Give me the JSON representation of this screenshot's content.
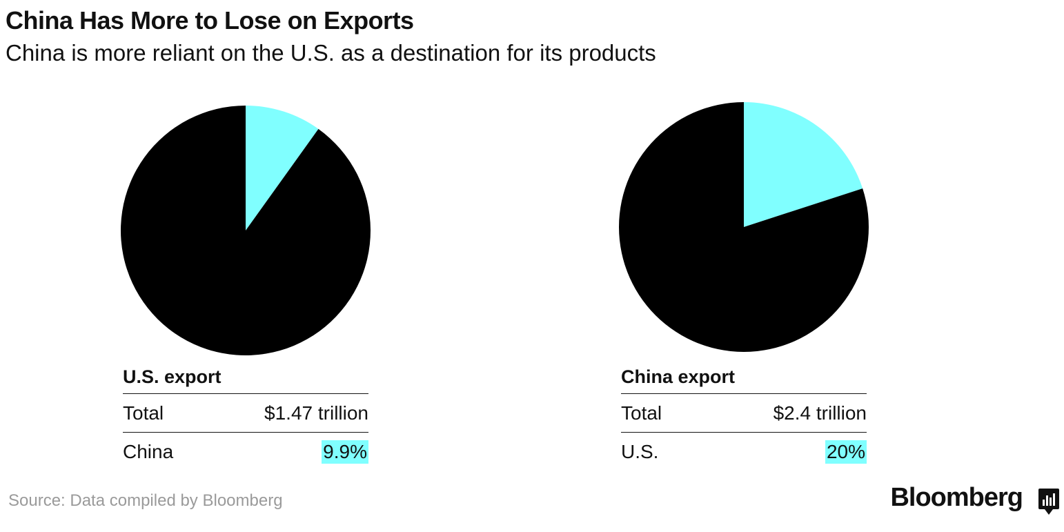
{
  "header": {
    "title": "China Has More to Lose on Exports",
    "subtitle": "China is more reliant on the U.S. as a destination for its products"
  },
  "colors": {
    "highlight": "#80ffff",
    "base": "#000000"
  },
  "chart_data": [
    {
      "type": "pie",
      "title": "U.S. export",
      "slices": [
        {
          "label": "China",
          "value": 9.9,
          "color": "#80ffff"
        },
        {
          "label": "",
          "value": 90.1,
          "color": "#000000"
        }
      ],
      "table": [
        {
          "label": "Total",
          "value": "$1.47 trillion"
        },
        {
          "label": "China",
          "value": "9.9%",
          "highlight": true
        }
      ]
    },
    {
      "type": "pie",
      "title": "China export",
      "slices": [
        {
          "label": "U.S.",
          "value": 20,
          "color": "#80ffff"
        },
        {
          "label": "",
          "value": 80,
          "color": "#000000"
        }
      ],
      "table": [
        {
          "label": "Total",
          "value": "$2.4 trillion"
        },
        {
          "label": "U.S.",
          "value": "20%",
          "highlight": true
        }
      ]
    }
  ],
  "footer": {
    "source": "Source: Data compiled by Bloomberg",
    "brand": "Bloomberg",
    "brand_icon": "bar-chart-icon"
  }
}
